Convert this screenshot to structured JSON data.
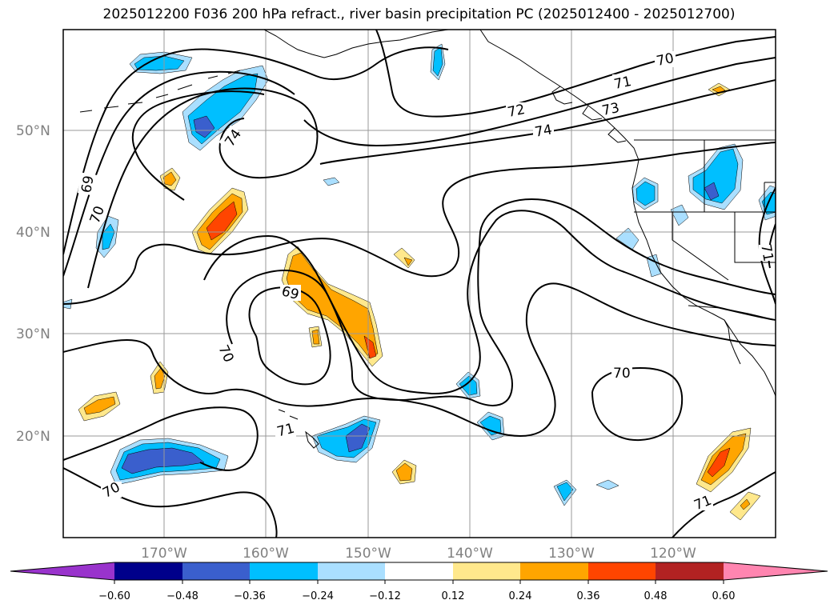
{
  "title": "2025012200 F036 200 hPa refract., river basin precipitation PC (2025012400 - 2025012700)",
  "lat_labels": [
    "50°N",
    "40°N",
    "30°N",
    "20°N"
  ],
  "lon_labels": [
    "170°W",
    "160°W",
    "150°W",
    "140°W",
    "130°W",
    "120°W"
  ],
  "contour_labels": [
    "74",
    "72",
    "71",
    "70",
    "70",
    "69",
    "69",
    "70",
    "71",
    "70",
    "70",
    "71",
    "71",
    "73",
    "74"
  ],
  "colorbar": {
    "ticks": [
      "−0.60",
      "−0.48",
      "−0.36",
      "−0.24",
      "−0.12",
      "0.12",
      "0.24",
      "0.36",
      "0.48",
      "0.60"
    ],
    "colors": [
      "#9933cc",
      "#00008b",
      "#3a5fcd",
      "#00bfff",
      "#aadfff",
      "#ffffff",
      "#ffe88c",
      "#ffa500",
      "#ff4500",
      "#b22222",
      "#ff85b0"
    ]
  },
  "shade_colors": {
    "light_blue": "#aadfff",
    "blue": "#00bfff",
    "medium_blue": "#3a5fcd",
    "light_yellow": "#ffe88c",
    "orange": "#ffa500",
    "red_orange": "#ff4500"
  }
}
